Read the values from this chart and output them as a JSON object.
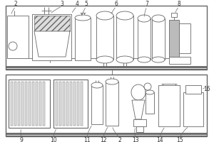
{
  "lc": "#666666",
  "lw": 0.6,
  "fig_w": 3.0,
  "fig_h": 2.0,
  "dpi": 100
}
